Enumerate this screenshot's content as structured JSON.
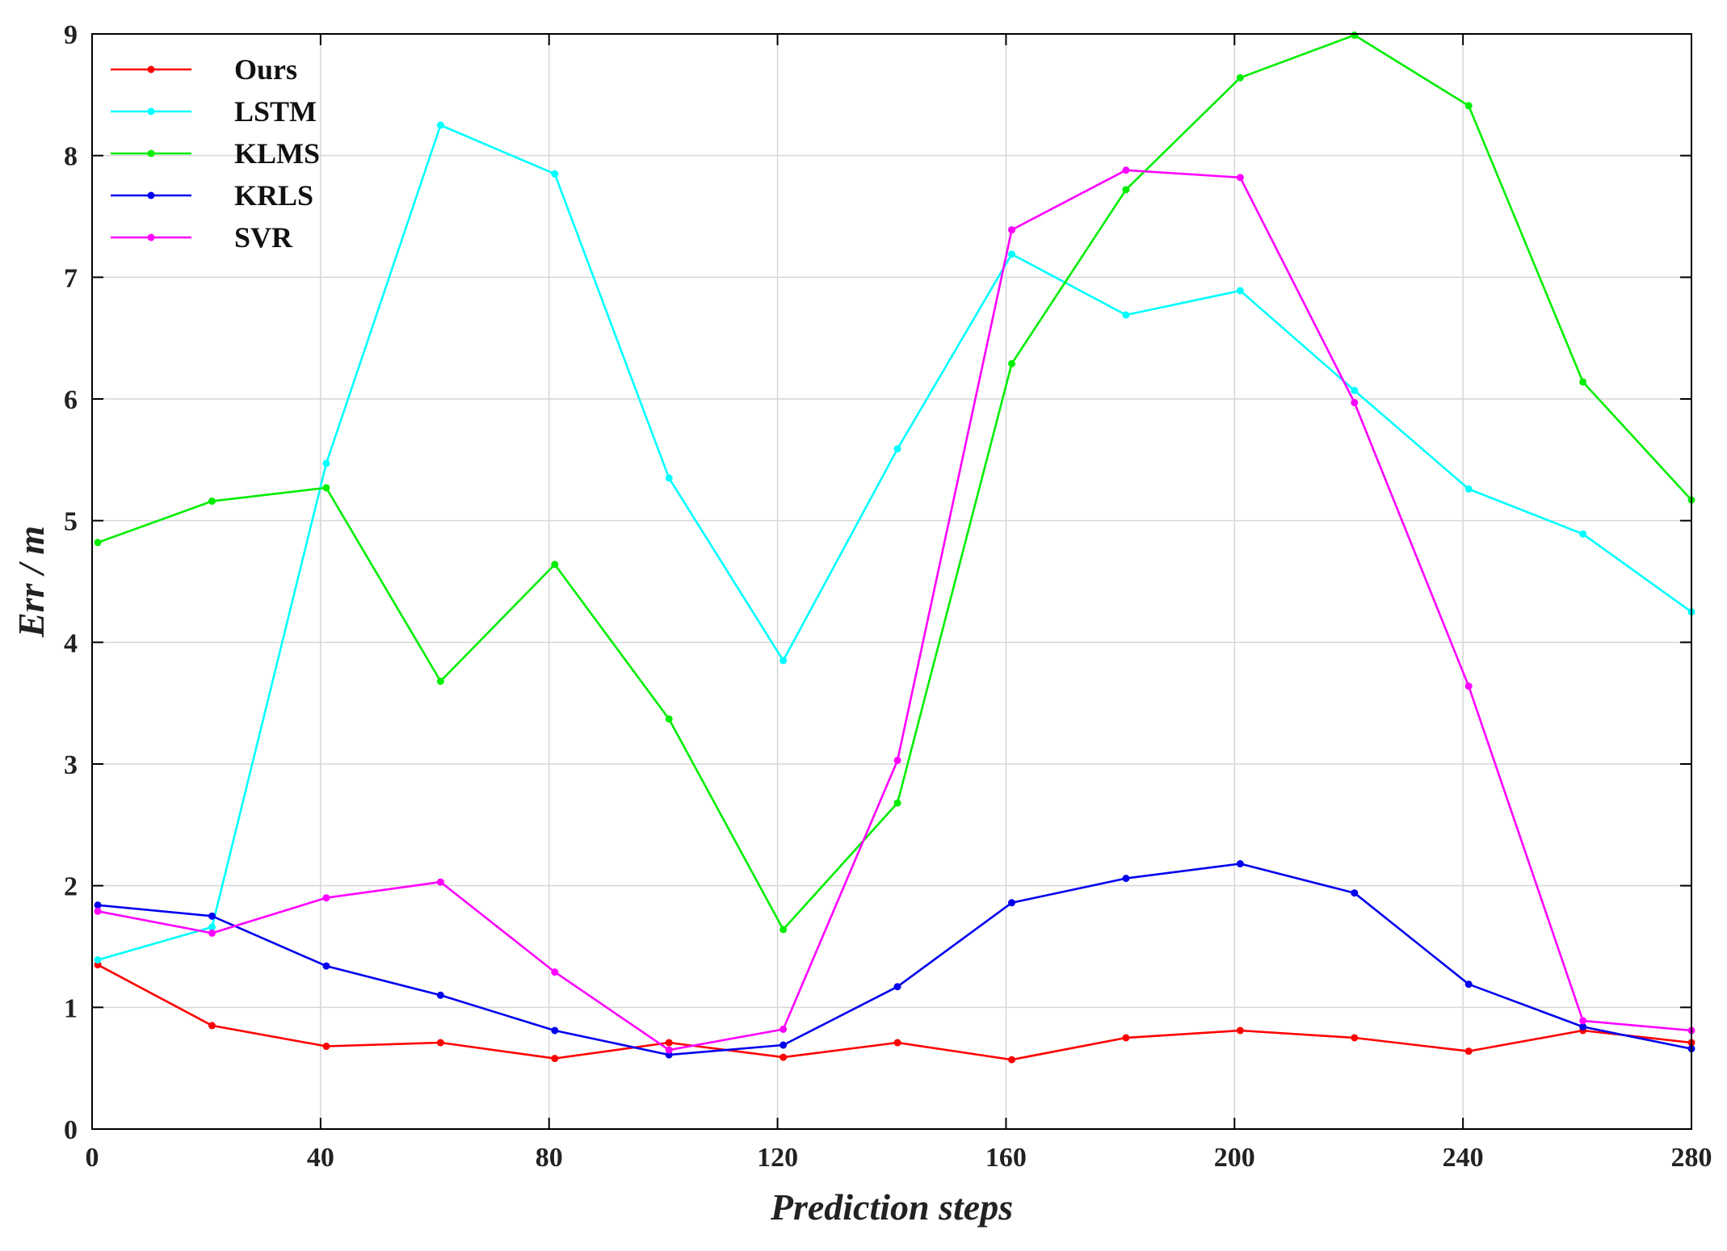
{
  "chart_data": {
    "type": "line",
    "title": "",
    "xlabel": "Prediction steps",
    "ylabel": "Err / m",
    "xlim": [
      0,
      280
    ],
    "ylim": [
      0,
      9
    ],
    "xticks": [
      0,
      40,
      80,
      120,
      160,
      200,
      240,
      280
    ],
    "yticks": [
      0,
      1,
      2,
      3,
      4,
      5,
      6,
      7,
      8,
      9
    ],
    "grid": true,
    "legend_position": "top-left",
    "x": [
      1,
      21,
      41,
      61,
      81,
      101,
      121,
      141,
      161,
      181,
      201,
      221,
      241,
      261,
      280
    ],
    "series": [
      {
        "name": "Ours",
        "color": "#ff0000",
        "values": [
          1.35,
          0.85,
          0.68,
          0.71,
          0.58,
          0.71,
          0.59,
          0.71,
          0.57,
          0.75,
          0.81,
          0.75,
          0.64,
          0.81,
          0.71
        ]
      },
      {
        "name": "LSTM",
        "color": "#00ffff",
        "values": [
          1.39,
          1.66,
          5.47,
          8.25,
          7.85,
          5.35,
          3.85,
          5.59,
          7.19,
          6.69,
          6.89,
          6.07,
          5.26,
          4.89,
          4.25
        ]
      },
      {
        "name": "KLMS",
        "color": "#00ee00",
        "values": [
          4.82,
          5.16,
          5.27,
          3.68,
          4.64,
          3.37,
          1.64,
          2.68,
          6.29,
          7.72,
          8.64,
          8.99,
          8.41,
          6.14,
          5.17
        ]
      },
      {
        "name": "KRLS",
        "color": "#0000ee",
        "values": [
          1.84,
          1.75,
          1.34,
          1.1,
          0.81,
          0.61,
          0.69,
          1.17,
          1.86,
          2.06,
          2.18,
          1.94,
          1.19,
          0.84,
          0.66
        ]
      },
      {
        "name": "SVR",
        "color": "#ff00ff",
        "values": [
          1.79,
          1.61,
          1.9,
          2.03,
          1.29,
          0.65,
          0.82,
          3.03,
          7.39,
          7.88,
          7.82,
          5.97,
          3.64,
          0.89,
          0.81
        ]
      }
    ]
  }
}
